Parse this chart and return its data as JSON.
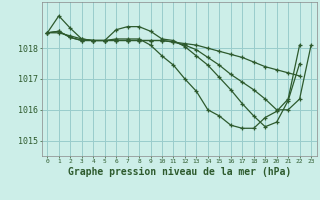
{
  "background_color": "#cceee8",
  "line_color": "#2d5a2d",
  "grid_color": "#99cccc",
  "xlabel": "Graphe pression niveau de la mer (hPa)",
  "xlabel_fontsize": 7,
  "ylim": [
    1014.5,
    1019.5
  ],
  "xlim": [
    -0.5,
    23.5
  ],
  "yticks": [
    1015,
    1016,
    1017,
    1018
  ],
  "xticks": [
    0,
    1,
    2,
    3,
    4,
    5,
    6,
    7,
    8,
    9,
    10,
    11,
    12,
    13,
    14,
    15,
    16,
    17,
    18,
    19,
    20,
    21,
    22,
    23
  ],
  "line1_x": [
    0,
    1,
    2,
    3,
    4,
    5,
    6,
    7,
    8,
    9,
    10,
    11,
    12,
    13,
    14,
    15,
    16,
    17,
    18,
    19,
    20,
    21,
    22
  ],
  "line1_y": [
    1018.5,
    1019.05,
    1018.65,
    1018.3,
    1018.25,
    1018.25,
    1018.6,
    1018.7,
    1018.7,
    1018.55,
    1018.3,
    1018.25,
    1018.05,
    1017.75,
    1017.45,
    1017.05,
    1016.65,
    1016.2,
    1015.8,
    1015.45,
    1015.6,
    1016.3,
    1017.5
  ],
  "line2_x": [
    0,
    1,
    2,
    3,
    4,
    5,
    6,
    7,
    8,
    9,
    10,
    11,
    12,
    13,
    14,
    15,
    16,
    17,
    18,
    19,
    20,
    21,
    22
  ],
  "line2_y": [
    1018.5,
    1018.55,
    1018.35,
    1018.25,
    1018.25,
    1018.25,
    1018.25,
    1018.25,
    1018.25,
    1018.25,
    1018.25,
    1018.2,
    1018.15,
    1018.1,
    1018.0,
    1017.9,
    1017.8,
    1017.7,
    1017.55,
    1017.4,
    1017.3,
    1017.2,
    1017.1
  ],
  "line3_x": [
    0,
    1,
    2,
    3,
    4,
    5,
    6,
    7,
    8,
    9,
    10,
    11,
    12,
    13,
    14,
    15,
    16,
    17,
    18,
    19,
    20,
    21,
    22
  ],
  "line3_y": [
    1018.5,
    1018.55,
    1018.35,
    1018.25,
    1018.25,
    1018.25,
    1018.3,
    1018.3,
    1018.3,
    1018.1,
    1017.75,
    1017.45,
    1017.0,
    1016.6,
    1016.0,
    1015.8,
    1015.5,
    1015.4,
    1015.4,
    1015.75,
    1015.95,
    1016.35,
    1018.1
  ],
  "line4_x": [
    0,
    1,
    2,
    3,
    4,
    5,
    6,
    7,
    8,
    9,
    10,
    11,
    12,
    13,
    14,
    15,
    16,
    17,
    18,
    19,
    20,
    21,
    22,
    23
  ],
  "line4_y": [
    1018.5,
    1018.5,
    1018.4,
    1018.3,
    1018.25,
    1018.25,
    1018.25,
    1018.25,
    1018.25,
    1018.25,
    1018.25,
    1018.2,
    1018.1,
    1017.95,
    1017.7,
    1017.45,
    1017.15,
    1016.9,
    1016.65,
    1016.35,
    1016.0,
    1016.0,
    1016.35,
    1018.1
  ]
}
